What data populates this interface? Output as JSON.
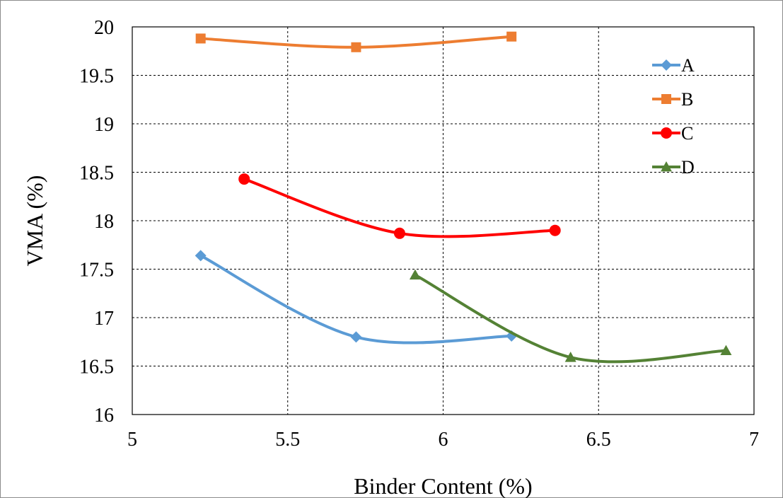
{
  "chart_data": {
    "type": "line",
    "xlabel": "Binder Content (%)",
    "ylabel": "VMA (%)",
    "xlim": [
      5,
      7
    ],
    "ylim": [
      16,
      20
    ],
    "x_ticks": [
      "5",
      "5.5",
      "6",
      "6.5",
      "7"
    ],
    "y_ticks": [
      "16",
      "16.5",
      "17",
      "17.5",
      "18",
      "18.5",
      "19",
      "19.5",
      "20"
    ],
    "grid": true,
    "smoothed": true,
    "legend_position": "top-right",
    "series": [
      {
        "name": "A",
        "color": "#5b9bd5",
        "marker": "diamond",
        "x": [
          5.22,
          5.72,
          6.22
        ],
        "y": [
          17.64,
          16.8,
          16.81
        ]
      },
      {
        "name": "B",
        "color": "#ed7d31",
        "marker": "square",
        "x": [
          5.22,
          5.72,
          6.22
        ],
        "y": [
          19.88,
          19.79,
          19.9
        ]
      },
      {
        "name": "C",
        "color": "#ff0000",
        "marker": "circle",
        "x": [
          5.36,
          5.86,
          6.36
        ],
        "y": [
          18.43,
          17.87,
          17.9
        ]
      },
      {
        "name": "D",
        "color": "#548235",
        "marker": "triangle",
        "x": [
          5.91,
          6.41,
          6.91
        ],
        "y": [
          17.44,
          16.59,
          16.66
        ]
      }
    ]
  }
}
